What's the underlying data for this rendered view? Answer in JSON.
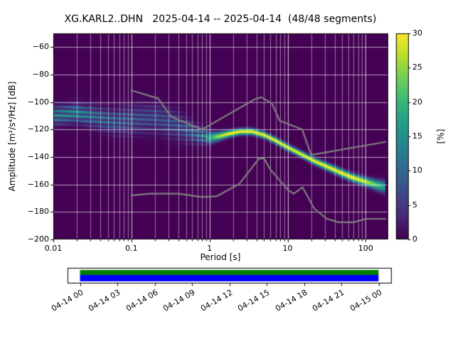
{
  "chart_data": {
    "type": "heatmap",
    "title": "XG.KARL2..DHN   2025-04-14 -- 2025-04-14  (48/48 segments)",
    "xlabel": "Period [s]",
    "ylabel": "Amplitude [m²/s⁴/Hz] [dB]",
    "x_scale": "log",
    "xlim": [
      0.01,
      190
    ],
    "ylim": [
      -200,
      -50
    ],
    "grid": true,
    "x_ticks": {
      "values": [
        0.01,
        0.1,
        1,
        10,
        100
      ],
      "labels": [
        "0.01",
        "0.1",
        "1",
        "10",
        "100"
      ]
    },
    "y_ticks": {
      "values": [
        -60,
        -80,
        -100,
        -120,
        -140,
        -160,
        -180,
        -200
      ],
      "labels": [
        "−60",
        "−80",
        "−100",
        "−120",
        "−140",
        "−160",
        "−180",
        "−200"
      ]
    },
    "colorbar": {
      "label": "[%]",
      "min": 0,
      "max": 30,
      "tick_values": [
        0,
        5,
        10,
        15,
        20,
        25,
        30
      ],
      "tick_labels": [
        "0",
        "5",
        "10",
        "15",
        "20",
        "25",
        "30"
      ],
      "colormap": "viridis"
    },
    "ppsd": {
      "periods": [
        0.01,
        0.02,
        0.035,
        0.06,
        0.1,
        0.15,
        0.22,
        0.3,
        0.45,
        0.7,
        1.0,
        1.3,
        1.8,
        2.5,
        3.5,
        5,
        7,
        10,
        15,
        22,
        32,
        46,
        68,
        100,
        140,
        180
      ],
      "mode_db": [
        -110,
        -108,
        -111,
        -114,
        -113,
        -112,
        -112,
        -115,
        -119,
        -124,
        -126,
        -125,
        -123,
        -121.5,
        -121.5,
        -124,
        -128,
        -133,
        -138,
        -143,
        -147,
        -151,
        -155,
        -158,
        -160.5,
        -162
      ],
      "peak_percent": [
        14,
        15,
        12,
        10,
        9,
        8,
        8,
        8,
        9,
        12,
        18,
        26,
        30,
        30,
        30,
        30,
        30,
        30,
        30,
        30,
        30,
        30,
        30,
        28,
        22,
        16
      ],
      "sigma_db": [
        4.5,
        4.5,
        5,
        5.5,
        6.5,
        7,
        7,
        7,
        6,
        4,
        2.8,
        2,
        1.6,
        1.5,
        1.5,
        1.5,
        1.5,
        1.5,
        1.5,
        1.6,
        1.7,
        1.8,
        1.9,
        2,
        2.4,
        3
      ]
    },
    "noise_models": {
      "color": "#808080",
      "high": {
        "periods": [
          0.1,
          0.22,
          0.32,
          0.8,
          3.8,
          4.6,
          6.3,
          7.9,
          15.4,
          20,
          180
        ],
        "db": [
          -91.5,
          -97.4,
          -110.5,
          -120,
          -98,
          -96.5,
          -101,
          -113.5,
          -120,
          -138.5,
          -129
        ]
      },
      "low": {
        "periods": [
          0.1,
          0.17,
          0.4,
          0.8,
          1.24,
          2.4,
          4.3,
          5,
          6,
          10,
          12,
          15.6,
          21.9,
          31.6,
          45,
          70,
          101,
          180
        ],
        "db": [
          -168,
          -166.7,
          -166.7,
          -169.2,
          -168.6,
          -159.7,
          -141.1,
          -141.1,
          -149,
          -163.7,
          -166.7,
          -162.1,
          -177.5,
          -185,
          -187.5,
          -187.5,
          -185,
          -185
        ]
      }
    },
    "timeline": {
      "tick_labels": [
        "04-14 00",
        "04-14 03",
        "04-14 06",
        "04-14 09",
        "04-14 12",
        "04-14 15",
        "04-14 18",
        "04-14 21",
        "04-15 00"
      ],
      "tick_hours": [
        0,
        3,
        6,
        9,
        12,
        15,
        18,
        21,
        24
      ],
      "span_hours": 24,
      "pad_hours": 1,
      "bars": [
        {
          "start_hour": 0,
          "end_hour": 24,
          "color": "#008000"
        },
        {
          "start_hour": 0,
          "end_hour": 24,
          "color": "#0000ff"
        }
      ]
    }
  }
}
